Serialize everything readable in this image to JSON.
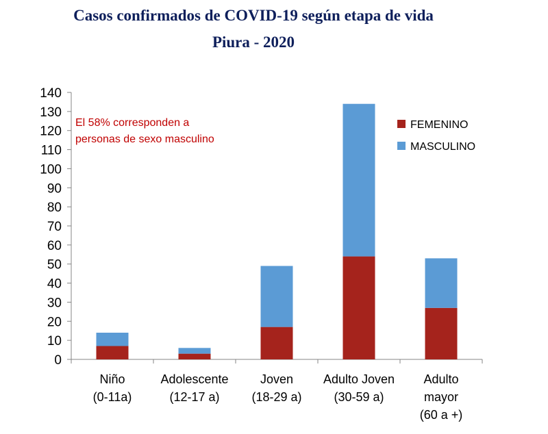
{
  "chart_data": {
    "type": "bar",
    "stacked": true,
    "title": "Casos confirmados de COVID-19 según etapa de vida",
    "subtitle": "Piura - 2020",
    "categories": [
      [
        "Niño",
        "(0-11a)"
      ],
      [
        "Adolescente",
        "(12-17 a)"
      ],
      [
        "Joven",
        "(18-29 a)"
      ],
      [
        "Adulto Joven",
        "(30-59 a)"
      ],
      [
        "Adulto",
        "mayor",
        "(60 a +)"
      ]
    ],
    "series": [
      {
        "name": "FEMENINO",
        "color": "#a5231c",
        "values": [
          7,
          3,
          17,
          54,
          27
        ]
      },
      {
        "name": "MASCULINO",
        "color": "#5b9bd5",
        "values": [
          7,
          3,
          32,
          80,
          26
        ]
      }
    ],
    "ylim": [
      0,
      140
    ],
    "yticks": [
      "0",
      "10",
      "20",
      "30",
      "40",
      "50",
      "60",
      "70",
      "80",
      "90",
      "100",
      "110",
      "120",
      "130",
      "140"
    ],
    "xlabel": "",
    "ylabel": "",
    "grid": false,
    "legend": "right",
    "annotation": [
      "El 58%  corresponden  a",
      "personas de sexo masculino"
    ]
  }
}
